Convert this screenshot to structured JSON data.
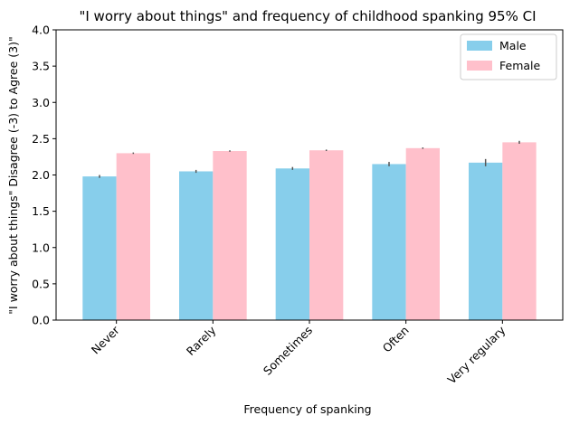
{
  "chart_data": {
    "type": "bar",
    "title": "\"I worry about things\" and frequency of childhood spanking 95% CI",
    "xlabel": "Frequency of spanking",
    "ylabel": "\"I worry about things\" Disagree (-3) to Agree (3)\"",
    "categories": [
      "Never",
      "Rarely",
      "Sometimes",
      "Often",
      "Very regulary"
    ],
    "ylim": [
      0,
      4
    ],
    "yticks": [
      0.0,
      0.5,
      1.0,
      1.5,
      2.0,
      2.5,
      3.0,
      3.5,
      4.0
    ],
    "ytick_labels": [
      "0.0",
      "0.5",
      "1.0",
      "1.5",
      "2.0",
      "2.5",
      "3.0",
      "3.5",
      "4.0"
    ],
    "grid": false,
    "legend_position": "top-right",
    "series": [
      {
        "name": "Male",
        "color": "#87CEEB",
        "values": [
          1.98,
          2.05,
          2.09,
          2.15,
          2.17
        ],
        "ci": [
          [
            1.96,
            2.0
          ],
          [
            2.03,
            2.07
          ],
          [
            2.07,
            2.11
          ],
          [
            2.12,
            2.18
          ],
          [
            2.12,
            2.22
          ]
        ]
      },
      {
        "name": "Female",
        "color": "#FFC0CB",
        "values": [
          2.3,
          2.33,
          2.34,
          2.37,
          2.45
        ],
        "ci": [
          [
            2.29,
            2.31
          ],
          [
            2.32,
            2.34
          ],
          [
            2.33,
            2.35
          ],
          [
            2.36,
            2.38
          ],
          [
            2.43,
            2.47
          ]
        ]
      }
    ]
  }
}
